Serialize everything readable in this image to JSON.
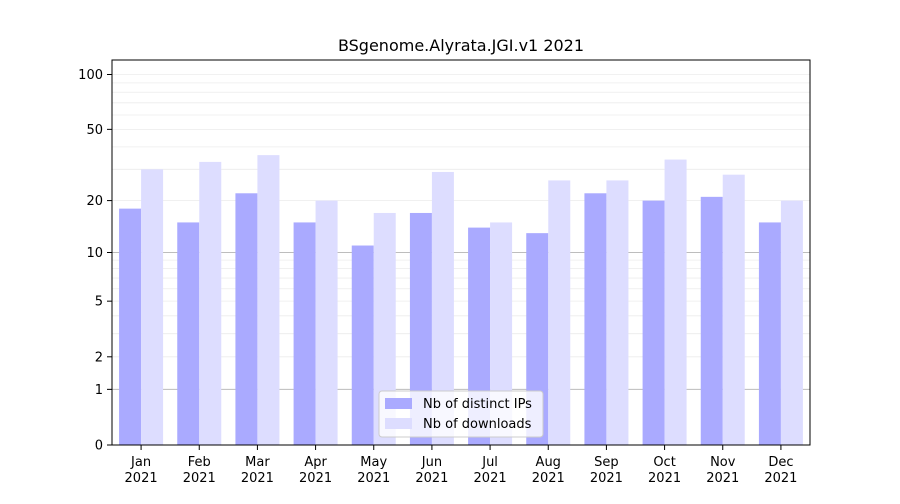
{
  "chart_data": {
    "type": "bar",
    "title": "BSgenome.Alyrata.JGI.v1 2021",
    "xlabel": "",
    "ylabel": "",
    "yscale": "log1p",
    "ylim": [
      0,
      120
    ],
    "yticks": [
      0,
      1,
      2,
      5,
      10,
      20,
      50,
      100
    ],
    "categories": [
      "Jan\n2021",
      "Feb\n2021",
      "Mar\n2021",
      "Apr\n2021",
      "May\n2021",
      "Jun\n2021",
      "Jul\n2021",
      "Aug\n2021",
      "Sep\n2021",
      "Oct\n2021",
      "Nov\n2021",
      "Dec\n2021"
    ],
    "series": [
      {
        "name": "Nb of distinct IPs",
        "color": "#aaaaff",
        "values": [
          18,
          15,
          22,
          15,
          11,
          17,
          14,
          13,
          22,
          20,
          21,
          15
        ]
      },
      {
        "name": "Nb of downloads",
        "color": "#ddddff",
        "values": [
          30,
          33,
          36,
          20,
          17,
          29,
          15,
          26,
          26,
          34,
          28,
          20
        ]
      }
    ],
    "grid": true,
    "legend_position": "bottom-center"
  }
}
